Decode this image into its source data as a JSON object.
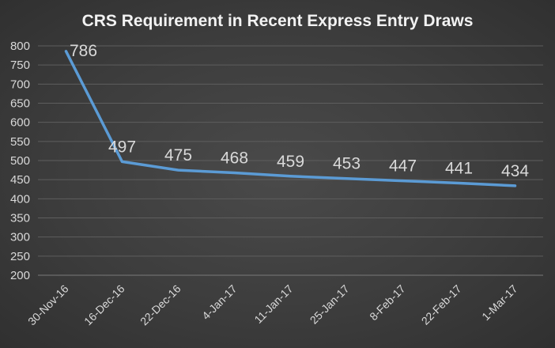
{
  "chart_data": {
    "type": "line",
    "title": "CRS Requirement in Recent Express Entry Draws",
    "categories": [
      "30-Nov-16",
      "16-Dec-16",
      "22-Dec-16",
      "4-Jan-17",
      "11-Jan-17",
      "25-Jan-17",
      "8-Feb-17",
      "22-Feb-17",
      "1-Mar-17"
    ],
    "values": [
      786,
      497,
      475,
      468,
      459,
      453,
      447,
      441,
      434
    ],
    "ylim": [
      200,
      800
    ],
    "yticks": [
      200,
      250,
      300,
      350,
      400,
      450,
      500,
      550,
      600,
      650,
      700,
      750,
      800
    ],
    "grid": true,
    "data_labels": true,
    "line_color": "#5b9bd5"
  }
}
